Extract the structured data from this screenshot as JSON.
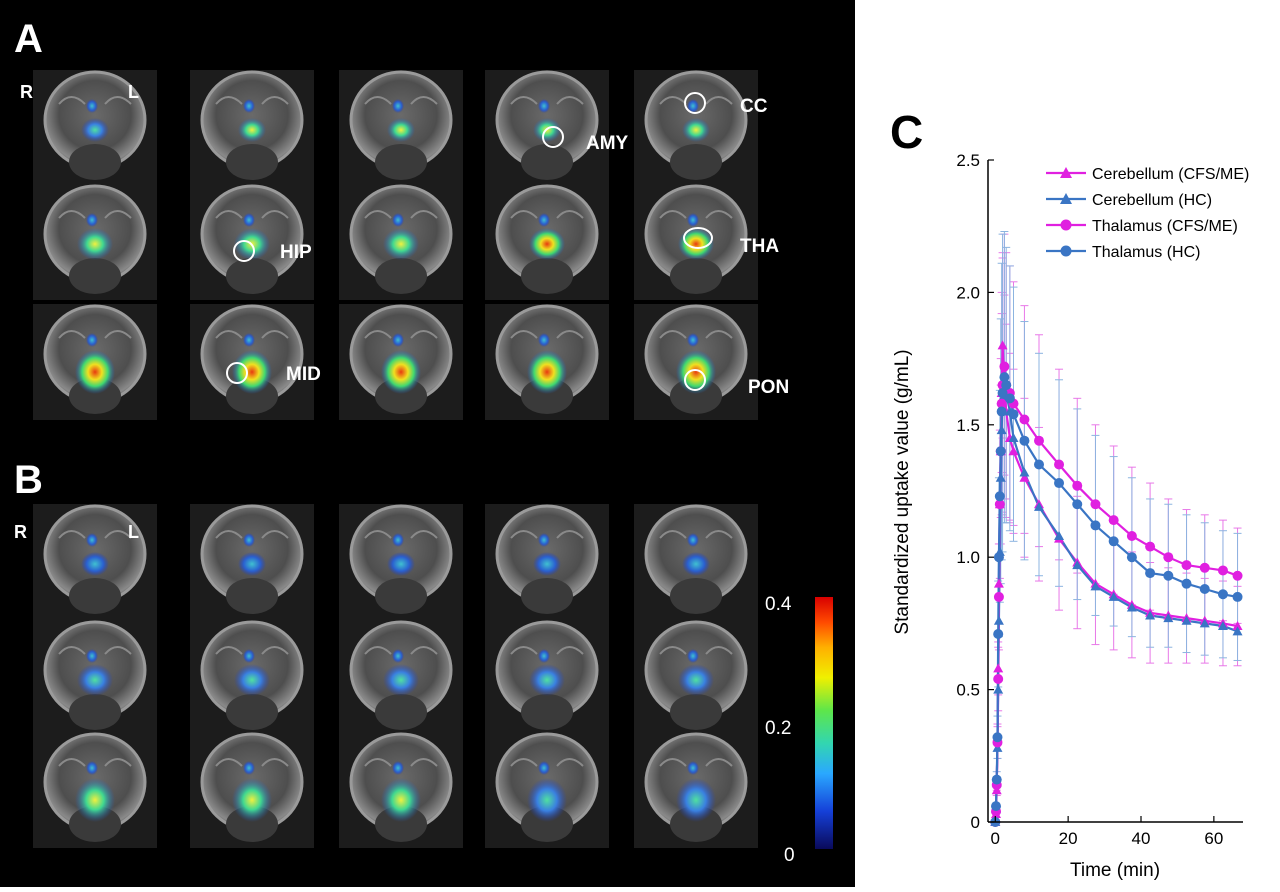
{
  "panels": {
    "a_label": "A",
    "b_label": "B",
    "c_label": "C"
  },
  "orientation": {
    "right": "R",
    "left": "L"
  },
  "regions": [
    "CC",
    "AMY",
    "HIP",
    "THA",
    "MID",
    "PON"
  ],
  "colorbar": {
    "ticks": [
      "0.4",
      "0.2",
      "0"
    ],
    "colors": [
      "#0a0a5a",
      "#1540d8",
      "#2aa8ff",
      "#32d6b0",
      "#5ee64a",
      "#f0f000",
      "#ffb000",
      "#ff4a00",
      "#d80000"
    ]
  },
  "colors": {
    "cfs": "#e020e0",
    "hc": "#3a75c4",
    "cfs_err": "#e878e8",
    "hc_err": "#8cb4e0"
  },
  "chart_data": {
    "type": "line",
    "xlabel": "Time (min)",
    "ylabel": "Standardized uptake value (g/mL)",
    "xlim": [
      -2,
      68
    ],
    "ylim": [
      0,
      2.5
    ],
    "xticks": [
      0,
      20,
      40,
      60
    ],
    "yticks": [
      0,
      0.5,
      1.0,
      1.5,
      2.0,
      2.5
    ],
    "ytick_labels": [
      "0",
      "0.5",
      "1.0",
      "1.5",
      "2.0",
      "2.5"
    ],
    "legend_position": "top-right",
    "x": [
      0,
      0.2,
      0.4,
      0.6,
      0.8,
      1.0,
      1.25,
      1.5,
      1.75,
      2.0,
      2.5,
      3,
      4,
      5,
      8,
      12,
      17.5,
      22.5,
      27.5,
      32.5,
      37.5,
      42.5,
      47.5,
      52.5,
      57.5,
      62.5,
      66.5
    ],
    "series": [
      {
        "name": "Cerebellum (CFS/ME)",
        "marker": "triangle",
        "color_key": "cfs",
        "values": [
          0.0,
          0.03,
          0.12,
          0.32,
          0.58,
          0.9,
          1.2,
          1.4,
          1.62,
          1.8,
          1.65,
          1.55,
          1.45,
          1.4,
          1.3,
          1.2,
          1.07,
          0.98,
          0.9,
          0.86,
          0.82,
          0.79,
          0.78,
          0.77,
          0.76,
          0.75,
          0.74
        ],
        "error": [
          0,
          0,
          0.02,
          0.05,
          0.1,
          0.15,
          0.2,
          0.25,
          0.3,
          0.35,
          0.34,
          0.33,
          0.32,
          0.31,
          0.3,
          0.29,
          0.27,
          0.25,
          0.23,
          0.21,
          0.2,
          0.19,
          0.18,
          0.17,
          0.16,
          0.16,
          0.15
        ]
      },
      {
        "name": "Cerebellum (HC)",
        "marker": "triangle",
        "color_key": "hc",
        "values": [
          0.0,
          0.05,
          0.15,
          0.28,
          0.5,
          0.76,
          1.02,
          1.3,
          1.48,
          1.6,
          1.65,
          1.62,
          1.55,
          1.45,
          1.32,
          1.19,
          1.08,
          0.97,
          0.89,
          0.85,
          0.81,
          0.78,
          0.77,
          0.76,
          0.75,
          0.74,
          0.72
        ]
      },
      {
        "name": "Thalamus (CFS/ME)",
        "marker": "circle",
        "color_key": "cfs",
        "values": [
          0.0,
          0.04,
          0.14,
          0.3,
          0.54,
          0.85,
          1.2,
          1.4,
          1.58,
          1.65,
          1.72,
          1.65,
          1.62,
          1.58,
          1.52,
          1.44,
          1.35,
          1.27,
          1.2,
          1.14,
          1.08,
          1.04,
          1.0,
          0.97,
          0.96,
          0.95,
          0.93
        ],
        "error": [
          0,
          0,
          0.02,
          0.06,
          0.12,
          0.2,
          0.28,
          0.35,
          0.42,
          0.48,
          0.5,
          0.5,
          0.48,
          0.46,
          0.43,
          0.4,
          0.36,
          0.33,
          0.3,
          0.28,
          0.26,
          0.24,
          0.22,
          0.21,
          0.2,
          0.19,
          0.18
        ]
      },
      {
        "name": "Thalamus (HC)",
        "marker": "circle",
        "color_key": "hc",
        "values": [
          0.0,
          0.06,
          0.16,
          0.32,
          0.71,
          1.0,
          1.23,
          1.4,
          1.55,
          1.62,
          1.68,
          1.65,
          1.6,
          1.54,
          1.44,
          1.35,
          1.28,
          1.2,
          1.12,
          1.06,
          1.0,
          0.94,
          0.93,
          0.9,
          0.88,
          0.86,
          0.85
        ],
        "error": [
          0,
          0,
          0.03,
          0.08,
          0.2,
          0.3,
          0.4,
          0.5,
          0.56,
          0.6,
          0.55,
          0.52,
          0.5,
          0.48,
          0.45,
          0.42,
          0.39,
          0.36,
          0.34,
          0.32,
          0.3,
          0.28,
          0.27,
          0.26,
          0.25,
          0.24,
          0.24
        ]
      }
    ]
  }
}
